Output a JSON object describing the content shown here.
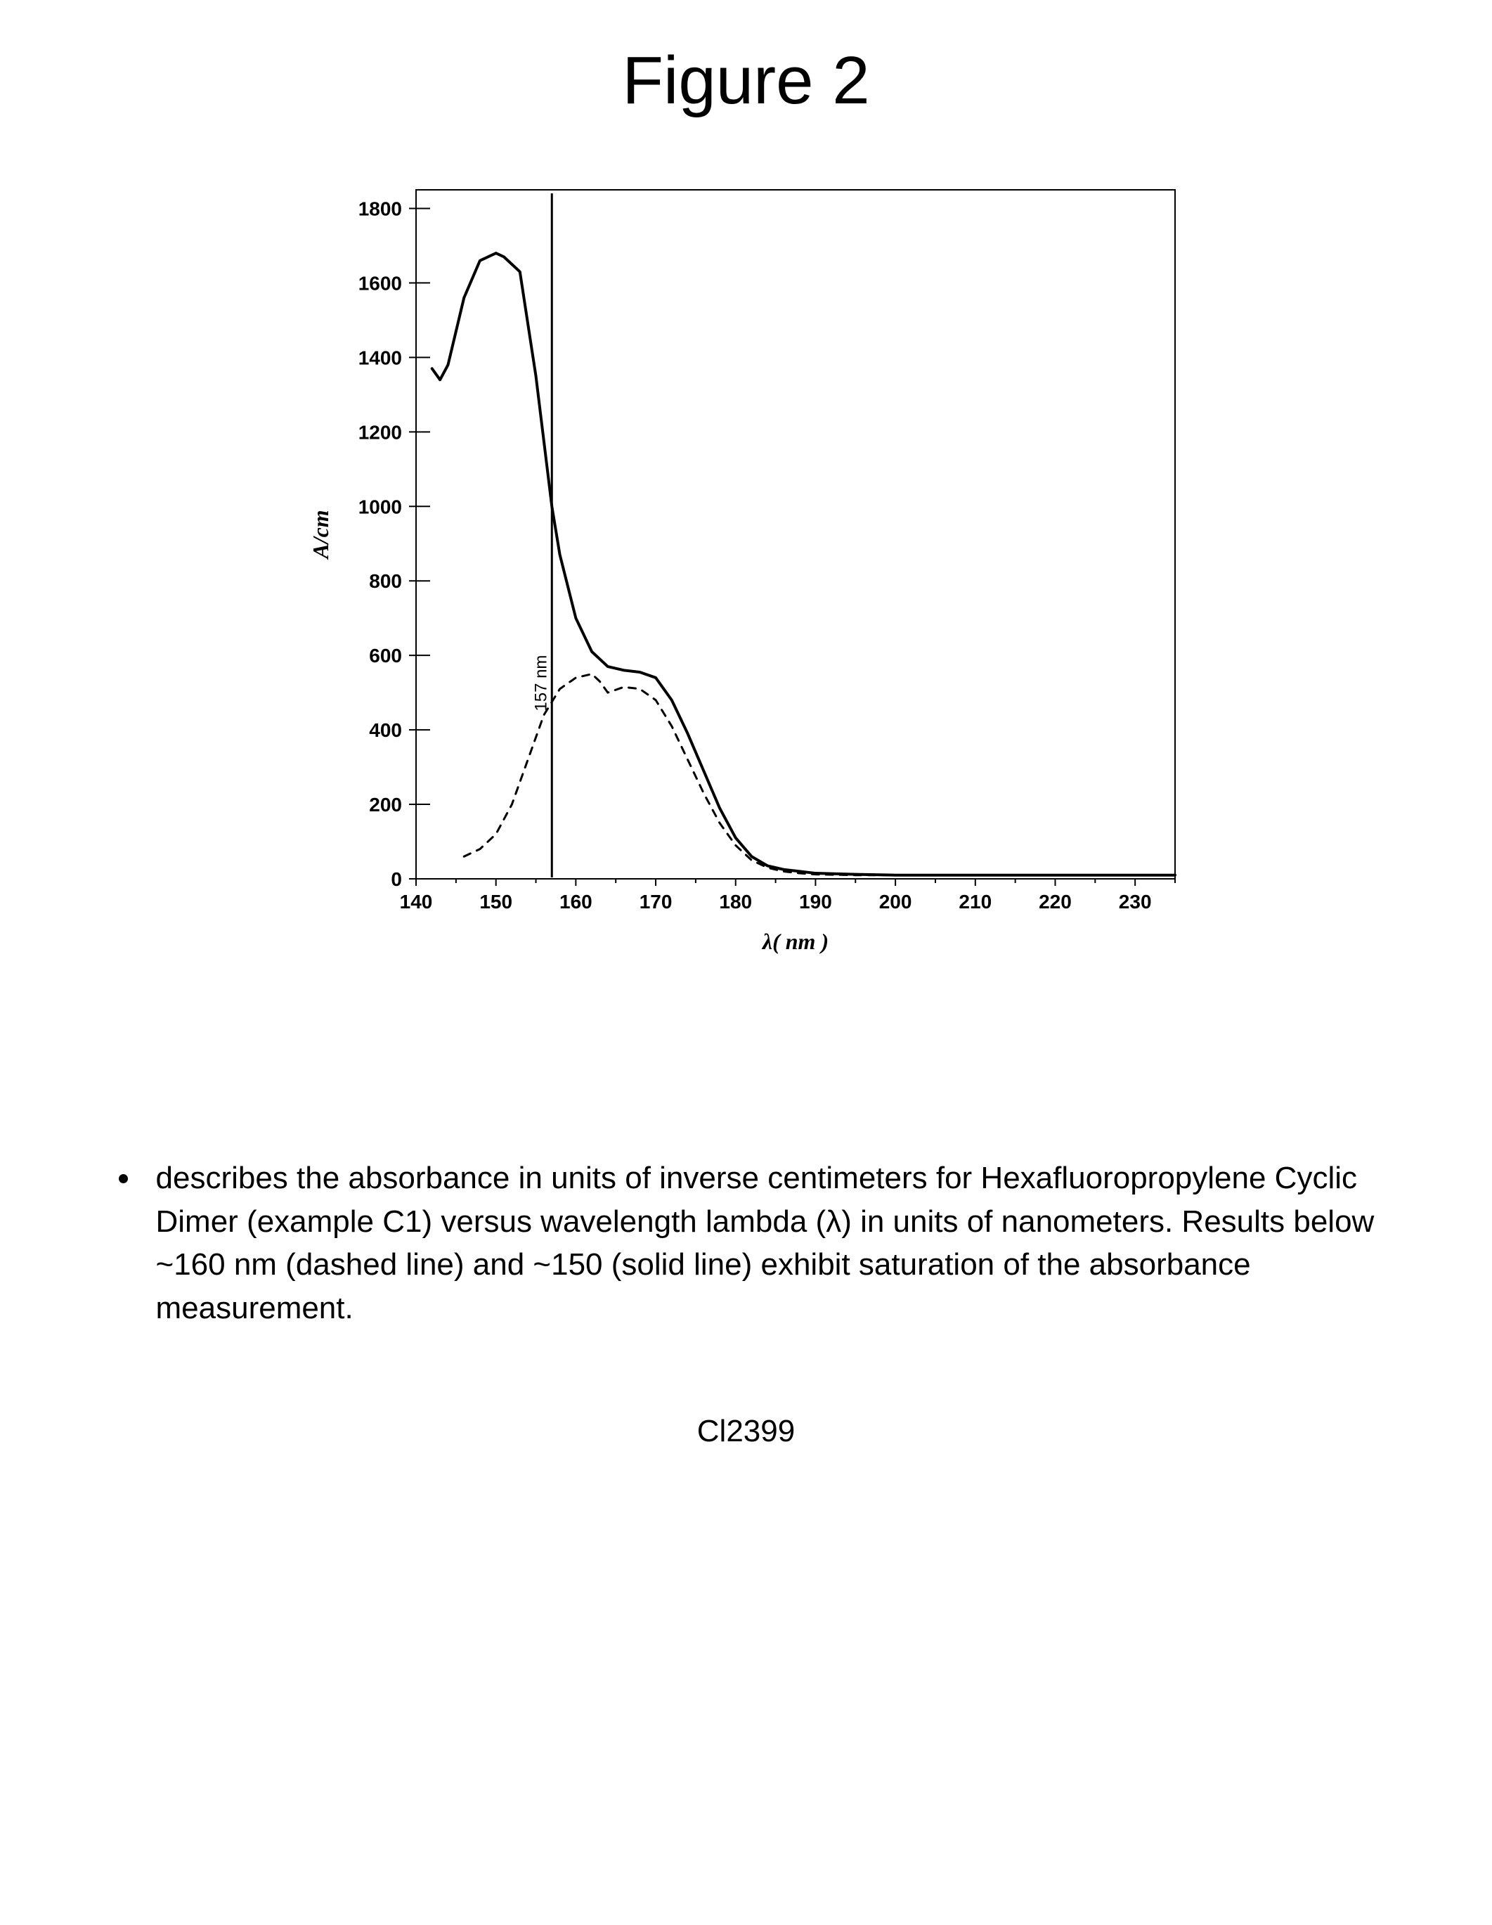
{
  "figure_title": "Figure 2",
  "chart": {
    "type": "line",
    "xlabel": "λ( nm )",
    "ylabel": "A/cm",
    "xlabel_fontstyle": "italic",
    "ylabel_fontstyle": "italic",
    "xlim": [
      140,
      235
    ],
    "ylim": [
      0,
      1850
    ],
    "xtick_start": 140,
    "xtick_step": 10,
    "xtick_end": 230,
    "ytick_start": 0,
    "ytick_step": 200,
    "ytick_end": 1800,
    "tick_fontsize": 28,
    "label_fontsize": 32,
    "background_color": "#ffffff",
    "axis_color": "#000000",
    "axis_width": 2,
    "tick_length": 10,
    "annotation": {
      "x": 157,
      "label": "157 nm",
      "line_color": "#000000",
      "line_width": 3
    },
    "series": [
      {
        "name": "solid",
        "color": "#000000",
        "width": 4,
        "dash": "none",
        "points": [
          [
            142,
            1370
          ],
          [
            143,
            1340
          ],
          [
            144,
            1380
          ],
          [
            146,
            1560
          ],
          [
            148,
            1660
          ],
          [
            150,
            1680
          ],
          [
            151,
            1670
          ],
          [
            153,
            1630
          ],
          [
            155,
            1350
          ],
          [
            157,
            1000
          ],
          [
            158,
            870
          ],
          [
            160,
            700
          ],
          [
            162,
            610
          ],
          [
            164,
            570
          ],
          [
            166,
            560
          ],
          [
            168,
            555
          ],
          [
            170,
            540
          ],
          [
            172,
            480
          ],
          [
            174,
            390
          ],
          [
            176,
            290
          ],
          [
            178,
            190
          ],
          [
            180,
            110
          ],
          [
            182,
            60
          ],
          [
            184,
            35
          ],
          [
            186,
            25
          ],
          [
            188,
            20
          ],
          [
            190,
            15
          ],
          [
            195,
            12
          ],
          [
            200,
            10
          ],
          [
            210,
            10
          ],
          [
            220,
            10
          ],
          [
            230,
            10
          ],
          [
            235,
            10
          ]
        ]
      },
      {
        "name": "dashed",
        "color": "#000000",
        "width": 3,
        "dash": "10 10",
        "points": [
          [
            146,
            60
          ],
          [
            148,
            80
          ],
          [
            150,
            120
          ],
          [
            152,
            200
          ],
          [
            154,
            320
          ],
          [
            156,
            440
          ],
          [
            158,
            510
          ],
          [
            160,
            540
          ],
          [
            162,
            550
          ],
          [
            163,
            530
          ],
          [
            164,
            500
          ],
          [
            166,
            515
          ],
          [
            168,
            510
          ],
          [
            170,
            480
          ],
          [
            172,
            410
          ],
          [
            174,
            320
          ],
          [
            176,
            230
          ],
          [
            178,
            150
          ],
          [
            180,
            90
          ],
          [
            182,
            50
          ],
          [
            184,
            30
          ],
          [
            186,
            20
          ],
          [
            188,
            15
          ],
          [
            190,
            12
          ],
          [
            195,
            10
          ],
          [
            200,
            10
          ],
          [
            210,
            10
          ],
          [
            220,
            10
          ],
          [
            230,
            10
          ],
          [
            235,
            10
          ]
        ]
      }
    ]
  },
  "description": "describes the absorbance in units of inverse centimeters for Hexafluoropropylene Cyclic Dimer (example C1) versus wavelength lambda (λ) in units of nanometers. Results below  ~160 nm (dashed line) and ~150 (solid line) exhibit saturation of the absorbance measurement.",
  "footer_id": "Cl2399"
}
